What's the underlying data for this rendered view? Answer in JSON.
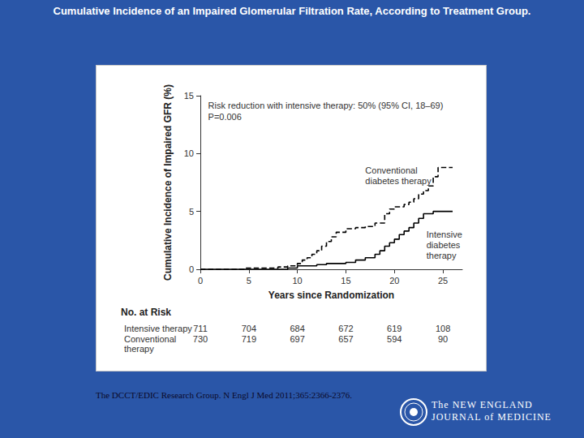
{
  "chart_data": {
    "type": "line",
    "title": "Cumulative Incidence of an Impaired Glomerular Filtration Rate, According to Treatment Group.",
    "xlabel": "Years since Randomization",
    "ylabel": "Cumulative Incidence of Impaired GFR (%)",
    "xlim": [
      0,
      27
    ],
    "xticks": [
      0,
      5,
      10,
      15,
      20,
      25
    ],
    "ylim": [
      0,
      15
    ],
    "yticks": [
      0,
      5,
      10,
      15
    ],
    "grid": false,
    "series": [
      {
        "name": "Conventional diabetes therapy",
        "color": "#000000",
        "line_style": "dashed",
        "x": [
          0,
          4.5,
          8,
          9,
          10,
          10.5,
          11,
          11.5,
          12,
          12.5,
          13,
          13.5,
          14,
          15,
          16,
          17,
          18,
          19,
          19.5,
          20,
          21,
          21.5,
          22,
          22.5,
          23,
          23.5,
          24,
          24.5,
          26
        ],
        "values": [
          0,
          0.1,
          0.2,
          0.3,
          0.5,
          0.8,
          1.0,
          1.3,
          1.6,
          2.0,
          2.4,
          2.8,
          3.2,
          3.5,
          3.6,
          3.7,
          4.0,
          4.8,
          5.2,
          5.4,
          5.6,
          5.8,
          6.1,
          6.5,
          6.8,
          7.2,
          8.0,
          8.8,
          8.8
        ]
      },
      {
        "name": "Intensive diabetes therapy",
        "color": "#000000",
        "line_style": "solid",
        "x": [
          0,
          5,
          9,
          10,
          12,
          13,
          15,
          16,
          17,
          18,
          18.5,
          19,
          19.5,
          20,
          20.5,
          21,
          21.5,
          22,
          22.5,
          23,
          24,
          26
        ],
        "values": [
          0,
          0,
          0.1,
          0.3,
          0.4,
          0.5,
          0.6,
          0.8,
          1.0,
          1.3,
          1.6,
          2.0,
          2.3,
          2.6,
          3.0,
          3.3,
          3.6,
          4.0,
          4.4,
          4.8,
          5.0,
          5.0
        ]
      }
    ],
    "annotations": [
      {
        "text": "Risk reduction with intensive therapy: 50% (95% CI, 18–69)",
        "x": 0.8,
        "y": 14.6
      },
      {
        "text": "P=0.006",
        "x": 0.8,
        "y": 13.6
      },
      {
        "text": "Conventional\ndiabetes therapy",
        "x": 17.0,
        "y": 9.0
      },
      {
        "text": "Intensive\ndiabetes\ntherapy",
        "x": 23.3,
        "y": 3.5
      }
    ],
    "risk_table": {
      "title": "No. at Risk",
      "x": [
        0,
        5,
        10,
        15,
        20,
        25
      ],
      "rows": [
        {
          "name": "Intensive therapy",
          "values": [
            711,
            704,
            684,
            672,
            619,
            108
          ]
        },
        {
          "name": "Conventional\ntherapy",
          "values": [
            730,
            719,
            697,
            657,
            594,
            90
          ]
        }
      ]
    }
  },
  "citation": "The DCCT/EDIC Research Group. N Engl J Med 2011;365:2366-2376.",
  "journal": "The NEW ENGLAND\nJOURNAL of MEDICINE"
}
